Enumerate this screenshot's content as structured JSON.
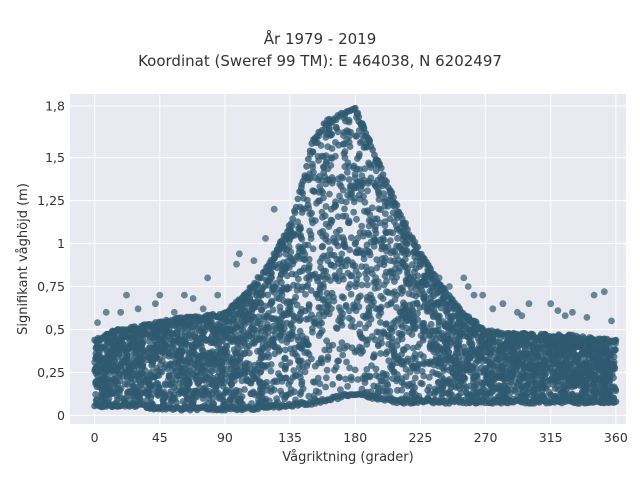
{
  "chart_data": {
    "type": "scatter",
    "title": "År 1979 - 2019",
    "subtitle": "Koordinat (Sweref 99 TM): E 464038, N 6202497",
    "xlabel": "Vågriktning (grader)",
    "ylabel": "Signifikant våghöjd (m)",
    "xlim": [
      -17,
      367
    ],
    "ylim": [
      -0.05,
      1.87
    ],
    "xticks": [
      0,
      45,
      90,
      135,
      180,
      225,
      270,
      315,
      360
    ],
    "xtick_labels": [
      "0",
      "45",
      "90",
      "135",
      "180",
      "225",
      "270",
      "315",
      "360"
    ],
    "yticks": [
      0,
      0.25,
      0.5,
      0.75,
      1,
      1.25,
      1.5,
      1.8
    ],
    "ytick_labels": [
      "0",
      "0,25",
      "0,5",
      "0,75",
      "1",
      "1,25",
      "1,5",
      "1,8"
    ],
    "grid": true,
    "marker_color": "#2f5a70",
    "background_color": "#e9e9f1",
    "envelope": {
      "x": [
        0,
        15,
        30,
        45,
        60,
        75,
        90,
        105,
        120,
        135,
        145,
        150,
        160,
        170,
        180,
        190,
        200,
        210,
        225,
        240,
        255,
        270,
        285,
        300,
        315,
        330,
        345,
        360
      ],
      "y_max": [
        0.45,
        0.5,
        0.52,
        0.55,
        0.57,
        0.58,
        0.6,
        0.72,
        0.88,
        1.12,
        1.4,
        1.6,
        1.72,
        1.76,
        1.8,
        1.6,
        1.4,
        1.2,
        0.95,
        0.75,
        0.6,
        0.5,
        0.48,
        0.48,
        0.47,
        0.47,
        0.45,
        0.44
      ],
      "y_min": [
        0.05,
        0.05,
        0.05,
        0.03,
        0.03,
        0.03,
        0.03,
        0.03,
        0.04,
        0.05,
        0.06,
        0.06,
        0.08,
        0.1,
        0.12,
        0.1,
        0.08,
        0.07,
        0.07,
        0.07,
        0.07,
        0.07,
        0.07,
        0.07,
        0.07,
        0.07,
        0.07,
        0.07
      ]
    },
    "outliers": [
      {
        "x": 2,
        "y": 0.54
      },
      {
        "x": 8,
        "y": 0.6
      },
      {
        "x": 18,
        "y": 0.6
      },
      {
        "x": 22,
        "y": 0.7
      },
      {
        "x": 30,
        "y": 0.62
      },
      {
        "x": 42,
        "y": 0.65
      },
      {
        "x": 45,
        "y": 0.7
      },
      {
        "x": 55,
        "y": 0.6
      },
      {
        "x": 62,
        "y": 0.7
      },
      {
        "x": 68,
        "y": 0.68
      },
      {
        "x": 75,
        "y": 0.62
      },
      {
        "x": 78,
        "y": 0.8
      },
      {
        "x": 85,
        "y": 0.7
      },
      {
        "x": 98,
        "y": 0.88
      },
      {
        "x": 100,
        "y": 0.94
      },
      {
        "x": 110,
        "y": 0.9
      },
      {
        "x": 118,
        "y": 1.03
      },
      {
        "x": 124,
        "y": 1.2
      },
      {
        "x": 130,
        "y": 1.0
      },
      {
        "x": 205,
        "y": 1.25
      },
      {
        "x": 210,
        "y": 1.17
      },
      {
        "x": 215,
        "y": 1.04
      },
      {
        "x": 220,
        "y": 1.0
      },
      {
        "x": 225,
        "y": 0.9
      },
      {
        "x": 232,
        "y": 0.85
      },
      {
        "x": 238,
        "y": 0.8
      },
      {
        "x": 245,
        "y": 0.75
      },
      {
        "x": 255,
        "y": 0.8
      },
      {
        "x": 258,
        "y": 0.75
      },
      {
        "x": 262,
        "y": 0.7
      },
      {
        "x": 268,
        "y": 0.7
      },
      {
        "x": 275,
        "y": 0.62
      },
      {
        "x": 282,
        "y": 0.65
      },
      {
        "x": 292,
        "y": 0.6
      },
      {
        "x": 295,
        "y": 0.58
      },
      {
        "x": 300,
        "y": 0.65
      },
      {
        "x": 315,
        "y": 0.65
      },
      {
        "x": 320,
        "y": 0.61
      },
      {
        "x": 325,
        "y": 0.58
      },
      {
        "x": 330,
        "y": 0.6
      },
      {
        "x": 340,
        "y": 0.57
      },
      {
        "x": 345,
        "y": 0.7
      },
      {
        "x": 352,
        "y": 0.72
      },
      {
        "x": 357,
        "y": 0.55
      }
    ]
  }
}
